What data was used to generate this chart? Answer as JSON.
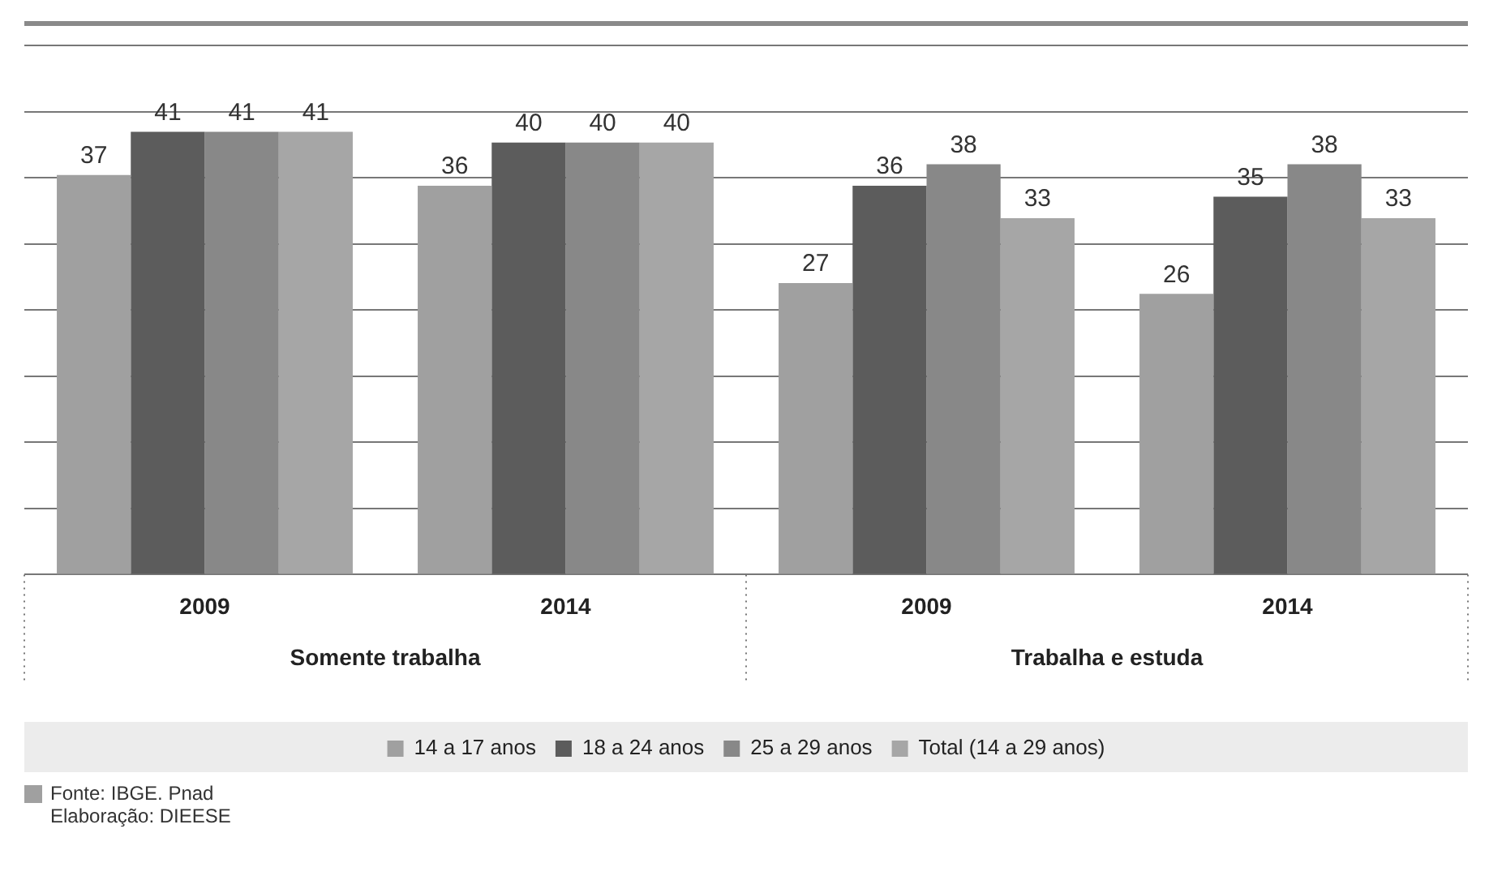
{
  "chart_data": {
    "type": "bar",
    "categories": [
      "2009",
      "2014",
      "2009",
      "2014"
    ],
    "series": [
      {
        "name": "14 a 17 anos",
        "color": "#a0a0a0",
        "values": [
          37,
          36,
          27,
          26
        ]
      },
      {
        "name": "18 a 24 anos",
        "color": "#5c5c5c",
        "values": [
          41,
          40,
          36,
          35
        ]
      },
      {
        "name": "25 a 29 anos",
        "color": "#888888",
        "values": [
          41,
          40,
          38,
          38
        ]
      },
      {
        "name": "Total (14 a 29 anos)",
        "color": "#a6a6a6",
        "values": [
          41,
          40,
          33,
          33
        ]
      }
    ],
    "ylim": [
      0,
      49
    ],
    "yticks": [
      {
        "value": 0,
        "label": null
      },
      {
        "value": 6.125,
        "label": null
      },
      {
        "value": 12.25,
        "label": null
      },
      {
        "value": 18.375,
        "label": null
      },
      {
        "value": 24.5,
        "label": null
      },
      {
        "value": 30.625,
        "label": null
      },
      {
        "value": 36.75,
        "label": null
      },
      {
        "value": 42.875,
        "label": null
      },
      {
        "value": 49,
        "label": null
      }
    ],
    "grid": "y",
    "legend": "bottom",
    "data_labels": true,
    "tick_labels": "x",
    "annotations": [
      "Somente trabalha",
      "Trabalha e estuda",
      "Fonte: IBGE. Pnad",
      "Elaboração: DIEESE"
    ]
  }
}
